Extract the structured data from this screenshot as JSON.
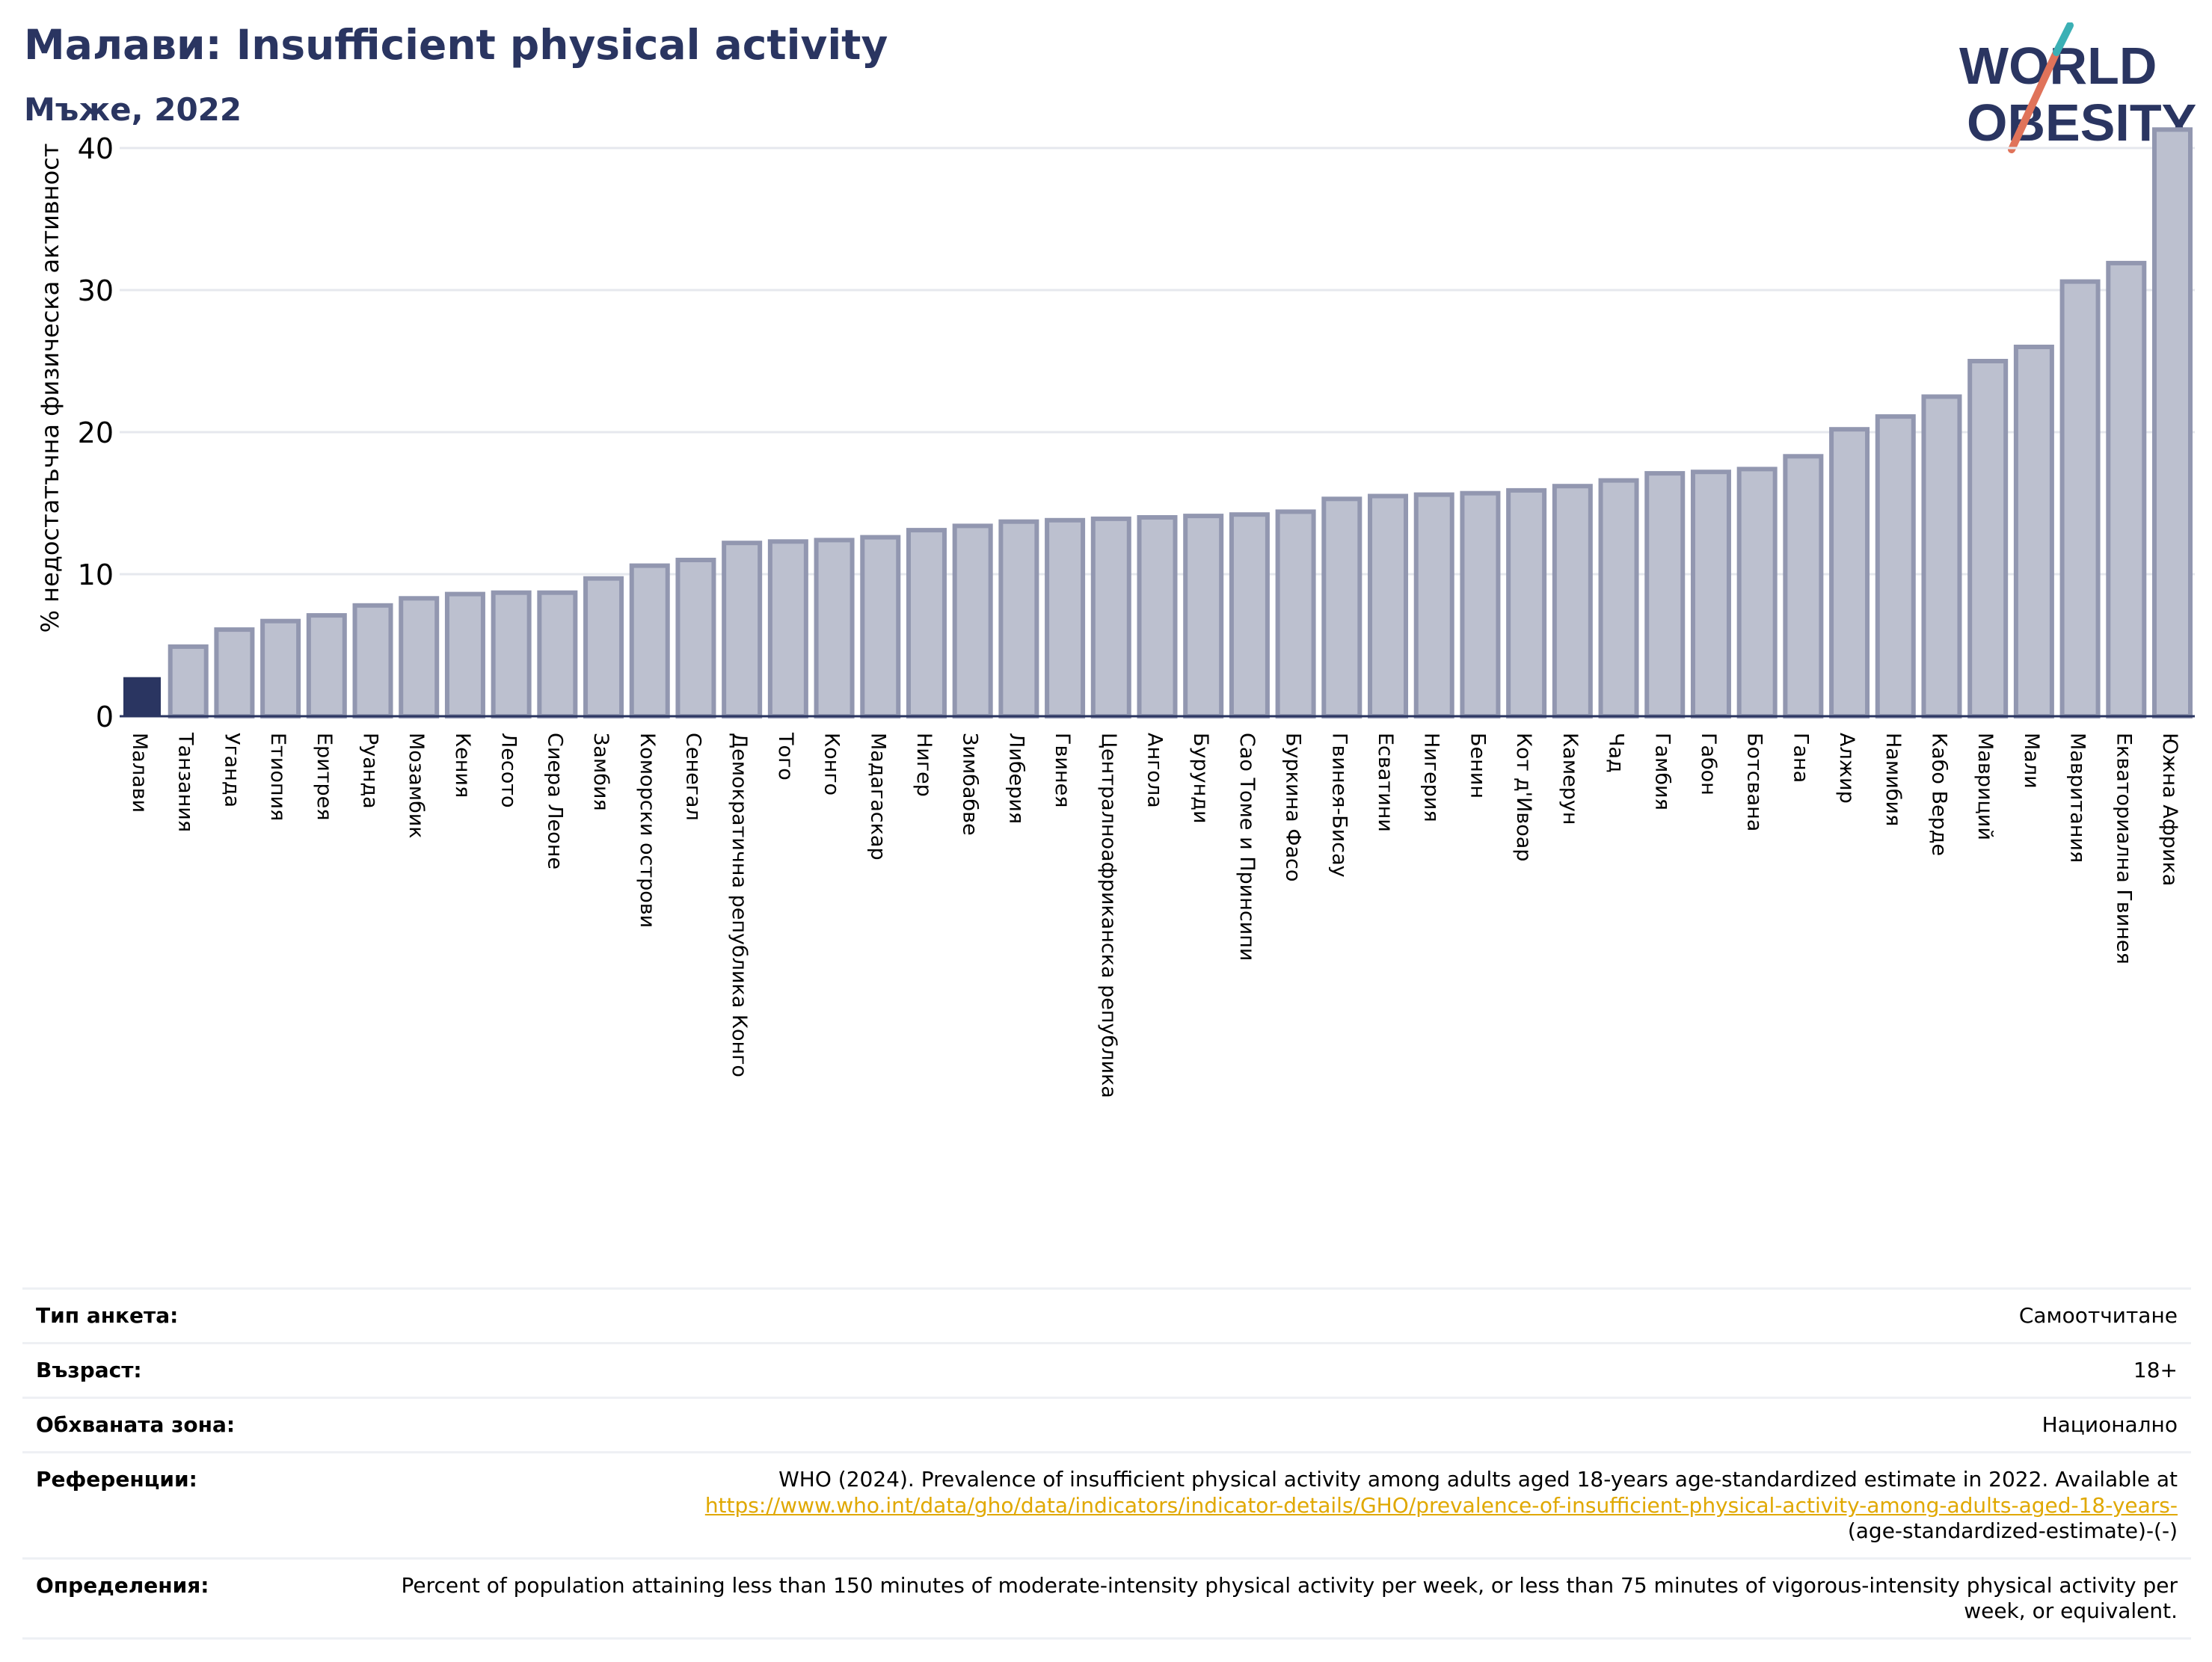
{
  "header": {
    "title": "Малави: Insufficient physical activity",
    "subtitle": "Мъже, 2022"
  },
  "logo": {
    "line1": "WORLD",
    "line2": "OBESITY"
  },
  "colors": {
    "highlight": "#2a3561",
    "bar_fill": "#bcc0cf",
    "bar_stroke": "#9297b0",
    "text_dark": "#2a3561",
    "link": "#e0a800"
  },
  "chart_data": {
    "type": "bar",
    "ylabel": "% недостатъчна физическа активност",
    "ylim": [
      0,
      42
    ],
    "yticks": [
      0,
      10,
      20,
      30,
      40
    ],
    "grid": true,
    "highlight_category": "Малави",
    "categories": [
      "Малави",
      "Танзания",
      "Уганда",
      "Етиопия",
      "Еритрея",
      "Руанда",
      "Мозамбик",
      "Кения",
      "Лесото",
      "Сиера Леоне",
      "Замбия",
      "Коморски острови",
      "Сенегал",
      "Демократична република Конго",
      "Того",
      "Конго",
      "Мадагаскар",
      "Нигер",
      "Зимбабве",
      "Либерия",
      "Гвинея",
      "Централноафриканска република",
      "Ангола",
      "Бурунди",
      "Сао Томе и Принсипи",
      "Буркина Фасо",
      "Гвинея-Бисау",
      "Есватини",
      "Нигерия",
      "Бенин",
      "Кот д'Ивоар",
      "Камерун",
      "Чад",
      "Гамбия",
      "Габон",
      "Ботсвана",
      "Гана",
      "Алжир",
      "Намибия",
      "Кабо Верде",
      "Мавриций",
      "Мали",
      "Мавритания",
      "Екваториална Гвинея",
      "Южна Африка"
    ],
    "values": [
      2.7,
      4.9,
      6.1,
      6.7,
      7.1,
      7.8,
      8.3,
      8.6,
      8.7,
      8.7,
      9.7,
      10.6,
      11.0,
      12.2,
      12.3,
      12.4,
      12.6,
      13.1,
      13.4,
      13.7,
      13.8,
      13.9,
      14.0,
      14.1,
      14.2,
      14.4,
      15.3,
      15.5,
      15.6,
      15.7,
      15.9,
      16.2,
      16.6,
      17.1,
      17.2,
      17.4,
      18.3,
      20.2,
      21.1,
      22.5,
      25.0,
      26.0,
      30.6,
      31.9,
      41.3
    ]
  },
  "info": {
    "survey_type_label": "Тип анкета:",
    "survey_type_value": "Самоотчитане",
    "age_label": "Възраст:",
    "age_value": "18+",
    "area_label": "Обхваната зона:",
    "area_value": "Национално",
    "references_label": "Референции:",
    "references_text": "WHO (2024). Prevalence of insufficient physical activity among adults aged 18-years age-standardized estimate in 2022. Available at",
    "references_link": "https://www.who.int/data/gho/data/indicators/indicator-details/GHO/prevalence-of-insufficient-physical-activity-among-adults-aged-18-years-",
    "references_tail": "(age-standardized-estimate)-(-)",
    "definitions_label": "Определения:",
    "definitions_value": "Percent of population attaining less than 150 minutes of moderate-intensity physical activity per week, or less than 75 minutes of vigorous-intensity physical activity per week, or equivalent."
  }
}
